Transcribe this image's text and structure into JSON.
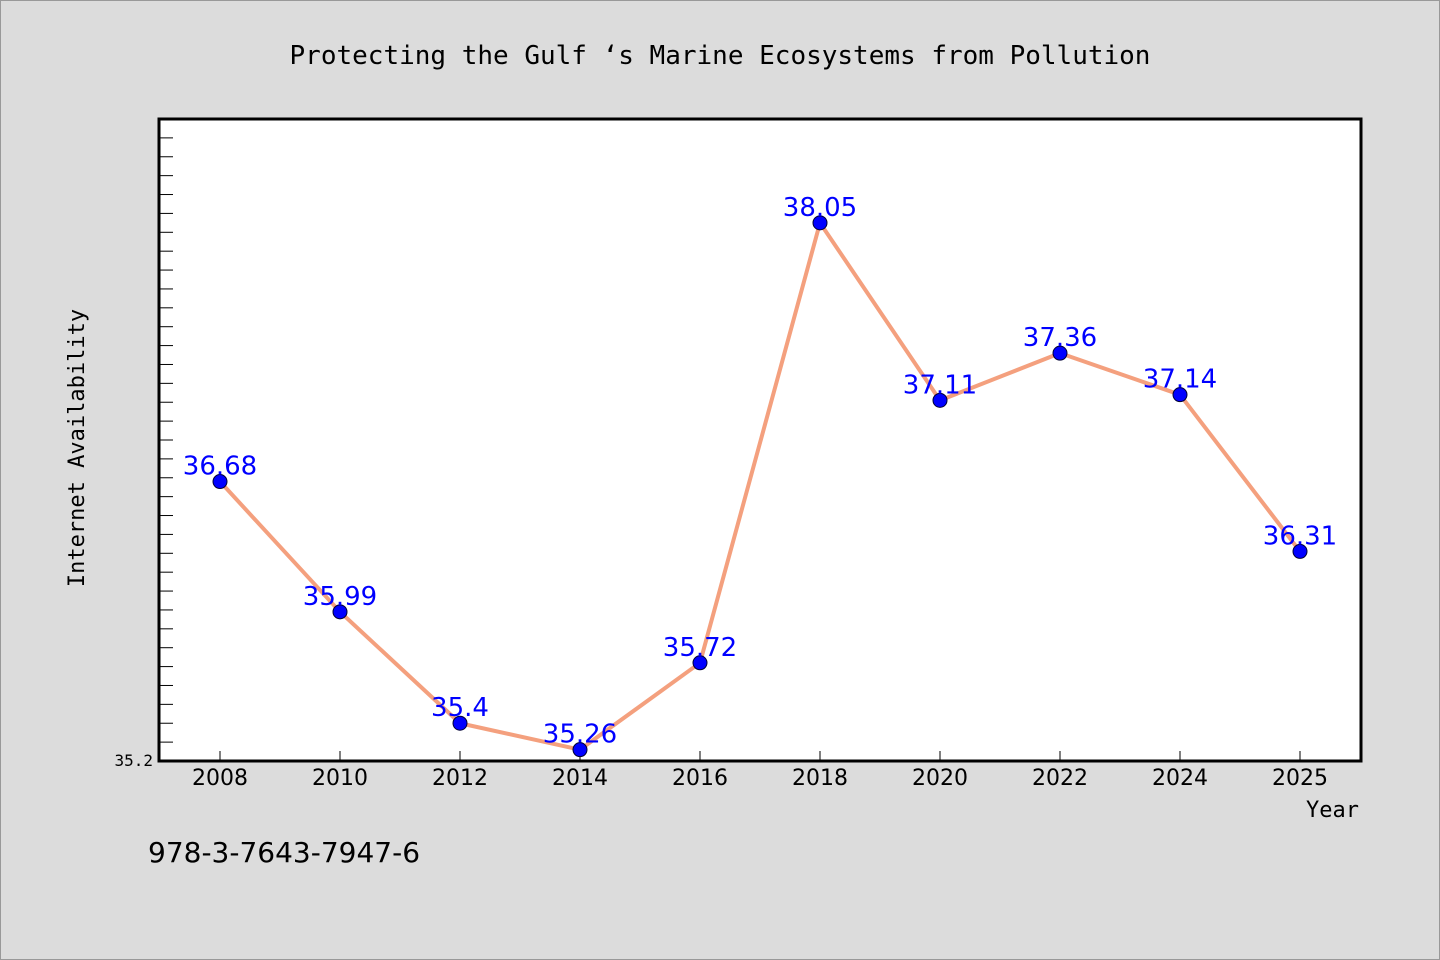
{
  "chart_data": {
    "type": "line",
    "title": "Protecting the Gulf ‘s Marine Ecosystems from Pollution",
    "xlabel": "Year",
    "ylabel": "Internet Availability",
    "categories": [
      "2008",
      "2010",
      "2012",
      "2014",
      "2016",
      "2018",
      "2020",
      "2022",
      "2024",
      "2025"
    ],
    "values": [
      36.68,
      35.99,
      35.4,
      35.26,
      35.72,
      38.05,
      37.11,
      37.36,
      37.14,
      36.31
    ],
    "data_labels": [
      "36.68",
      "35.99",
      "35.4",
      "35.26",
      "35.72",
      "38.05",
      "37.11",
      "37.36",
      "37.14",
      "36.31"
    ],
    "ylim": [
      35.2,
      38.6
    ],
    "yticks_labeled": [
      "35.2"
    ],
    "grid": false,
    "legend": "none",
    "line_color": "#f4a07e",
    "marker_color": "#0000ff",
    "label_color": "#0000ff"
  },
  "footer": {
    "isbn": "978-3-7643-7947-6"
  },
  "colors": {
    "background": "#dcdcdc",
    "plot_background": "#ffffff"
  }
}
